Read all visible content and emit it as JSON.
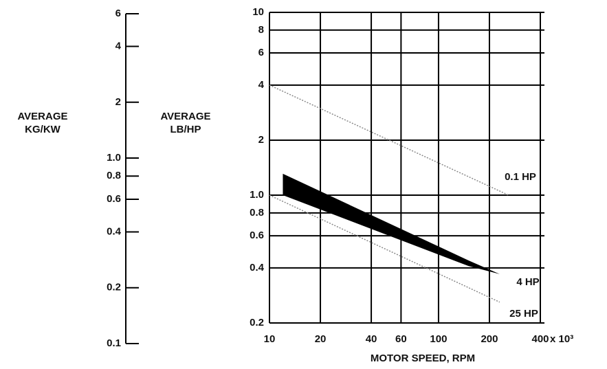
{
  "chart_data": {
    "type": "line",
    "x_label": "MOTOR SPEED, RPM",
    "x_multiplier": "x 10³",
    "y_label": [
      "AVERAGE",
      "LB/HP"
    ],
    "y2_label": [
      "AVERAGE",
      "KG/KW"
    ],
    "xlog": true,
    "ylog": true,
    "grid": true,
    "xlim": [
      10,
      400
    ],
    "xticks": [
      10,
      20,
      40,
      60,
      100,
      200,
      400
    ],
    "ylim": [
      0.2,
      10
    ],
    "yticks": [
      0.2,
      0.4,
      0.6,
      0.8,
      {
        "value": 1,
        "label": "1.0"
      },
      2,
      4,
      6,
      8,
      10
    ],
    "y2lim": [
      0.1,
      6
    ],
    "y2ticks": [
      0.1,
      0.2,
      0.4,
      0.6,
      0.8,
      {
        "value": 1,
        "label": "1.0"
      },
      2,
      4,
      6
    ],
    "series": [
      {
        "name": "0.1 HP",
        "color": "#888888",
        "x": [
          10,
          260
        ],
        "values": [
          4,
          1.0
        ]
      },
      {
        "name": "4 HP",
        "color": "#000000",
        "x": [
          12,
          150,
          230
        ],
        "values": [
          1.31,
          0.44,
          0.37
        ],
        "lower": [
          1.0,
          0.41,
          0.37
        ]
      },
      {
        "name": "25 HP",
        "color": "#888888",
        "x": [
          10,
          230
        ],
        "values": [
          1.0,
          0.26
        ]
      }
    ]
  }
}
